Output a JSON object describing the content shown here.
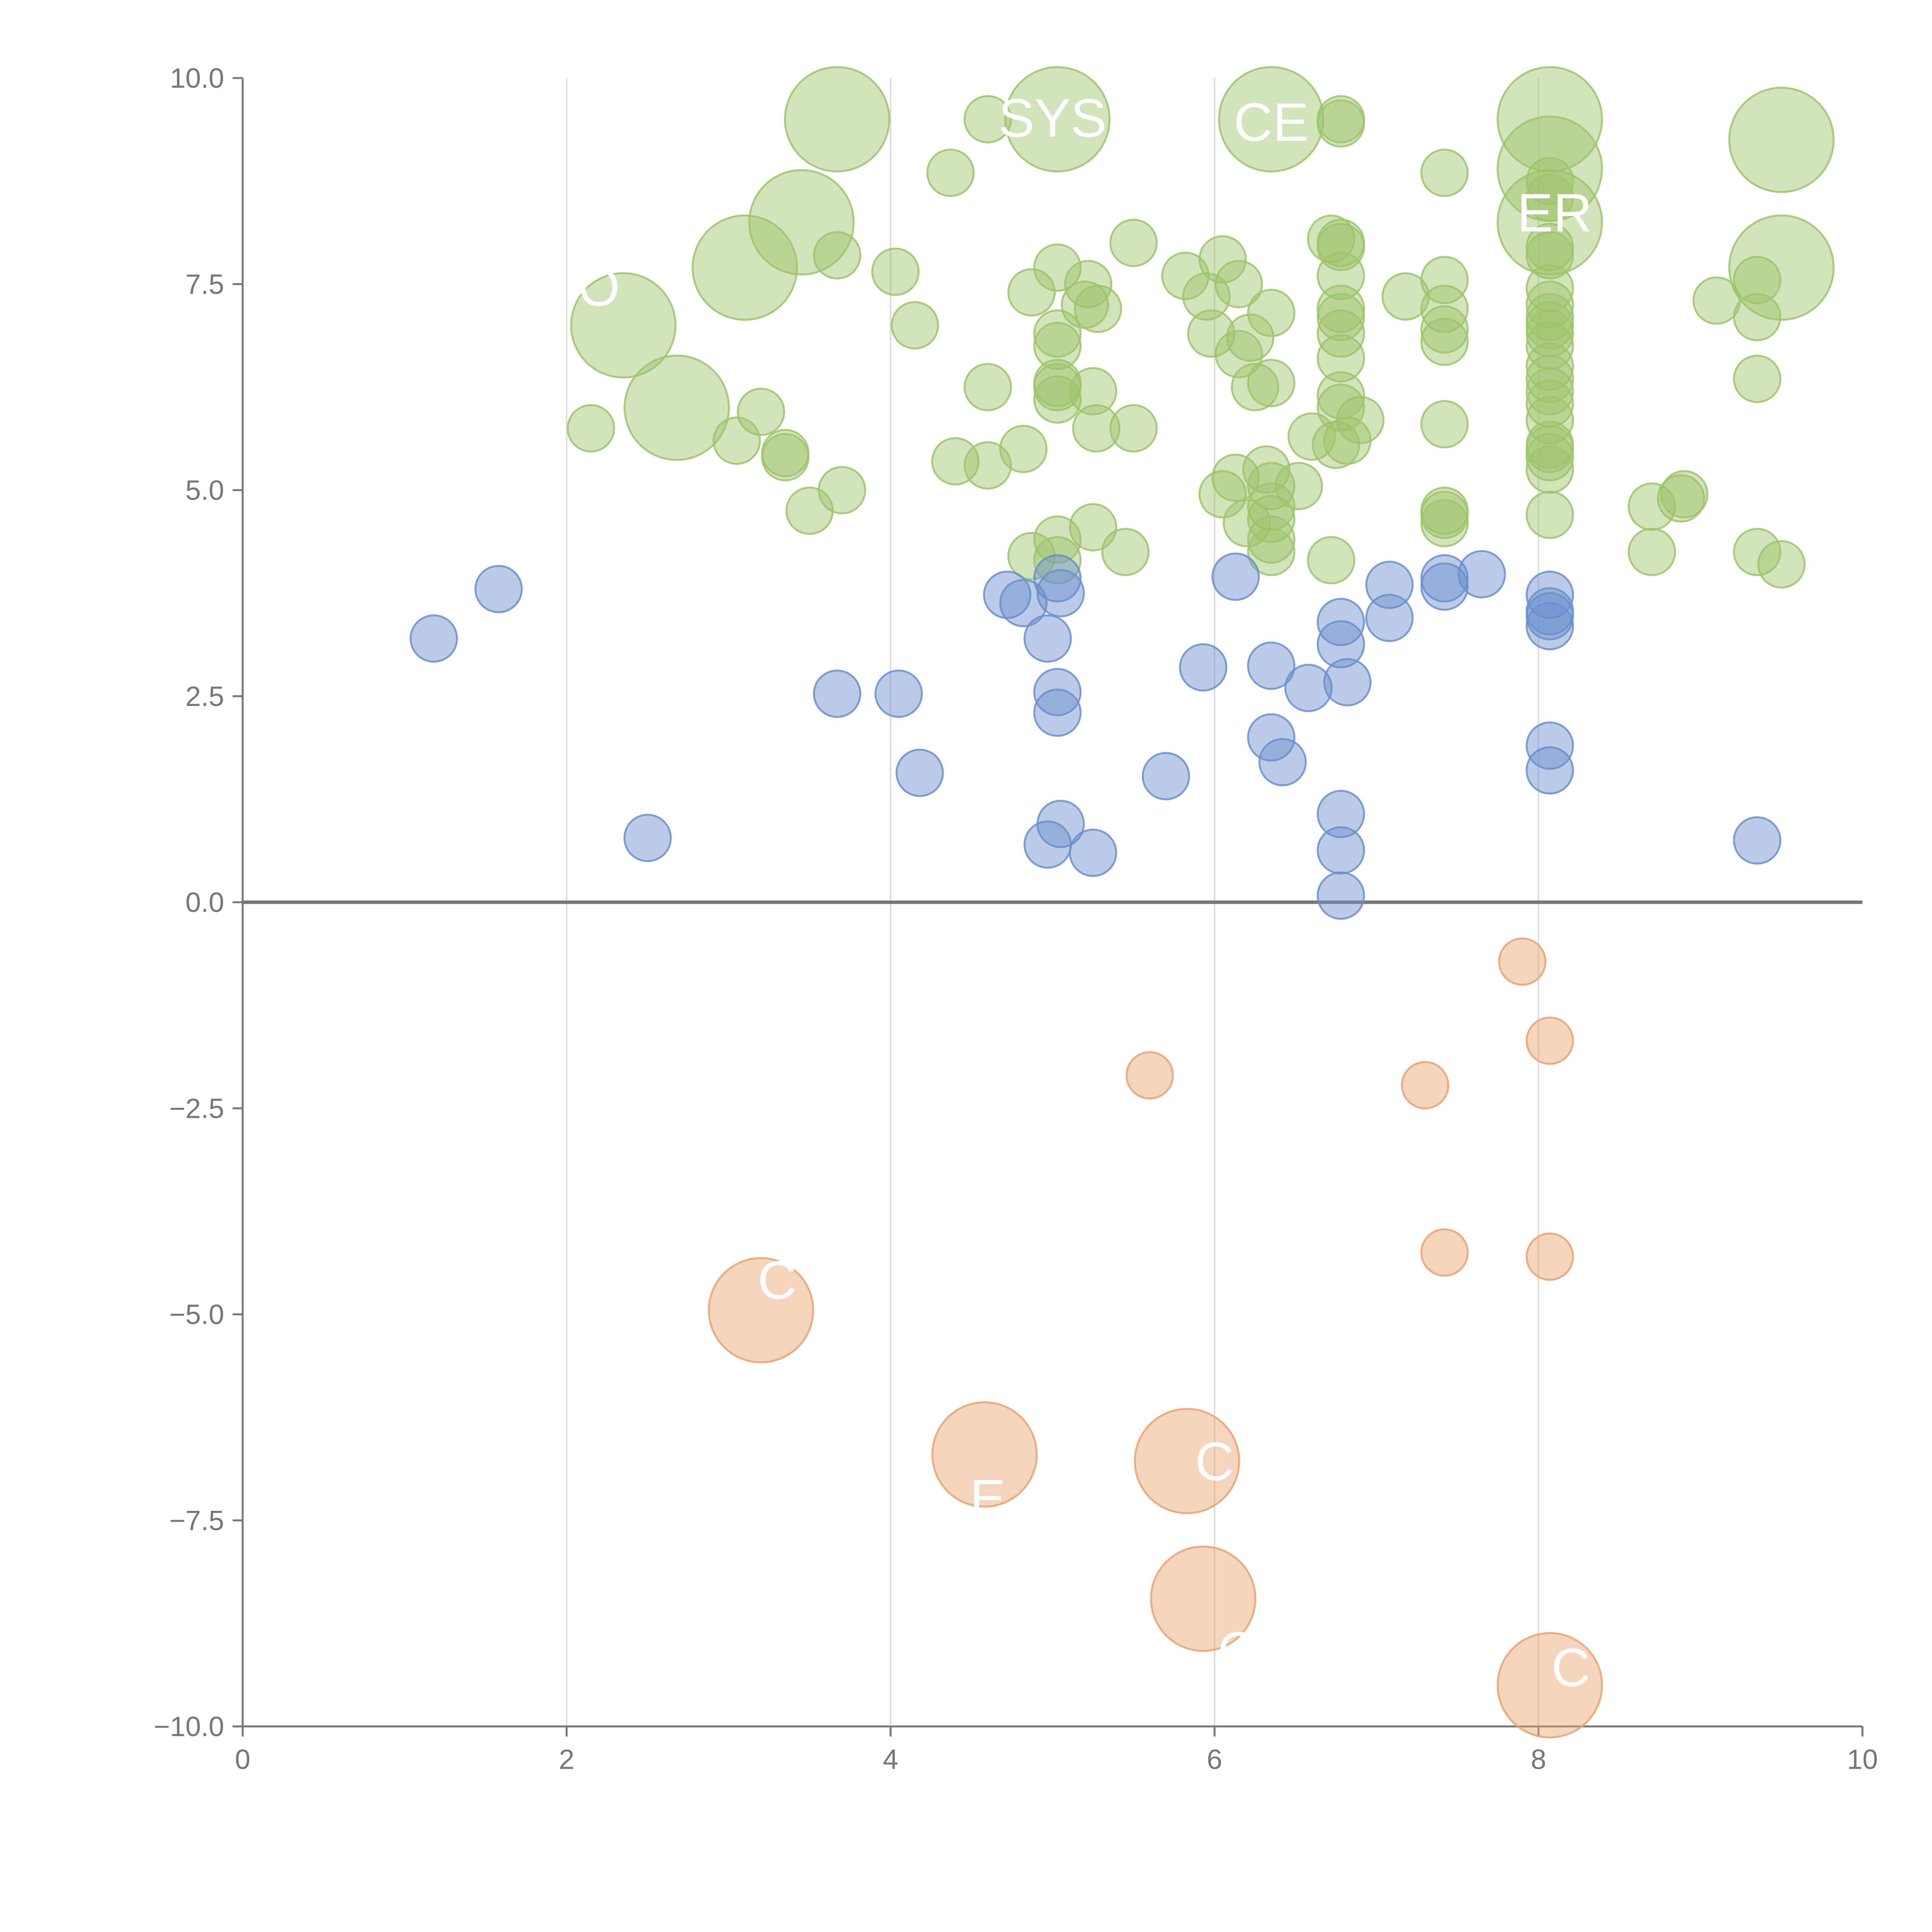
{
  "chart_data": {
    "type": "scatter",
    "title": "",
    "xlabel": "",
    "ylabel": "",
    "xlim": [
      0,
      10
    ],
    "ylim": [
      -10,
      10
    ],
    "x_ticks": [
      "0",
      "2",
      "4",
      "6",
      "8",
      "10"
    ],
    "y_ticks": [
      "10.0",
      "7.5",
      "5.0",
      "2.5",
      "0.0",
      "−2.5",
      "−5.0",
      "−7.5",
      "−10.0"
    ],
    "grid": "vertical",
    "reference_line": 0,
    "colors": {
      "green": "#9dc46b",
      "blue": "#6a8fcb",
      "orange": "#e8a26e",
      "axis": "#777777",
      "grid": "#dddddd"
    },
    "series": [
      {
        "name": "green",
        "color": "#9dc46b",
        "points": [
          [
            3.67,
            9.5,
            3
          ],
          [
            5.03,
            9.5,
            3
          ],
          [
            6.35,
            9.5,
            3
          ],
          [
            4.6,
            9.5,
            1
          ],
          [
            6.78,
            9.5,
            1
          ],
          [
            6.78,
            9.45,
            1
          ],
          [
            8.07,
            9.5,
            3
          ],
          [
            8.07,
            8.9,
            3
          ],
          [
            8.07,
            8.25,
            3
          ],
          [
            9.5,
            9.25,
            3
          ],
          [
            9.5,
            7.7,
            3
          ],
          [
            3.45,
            8.25,
            3
          ],
          [
            3.1,
            7.7,
            3
          ],
          [
            2.35,
            7.0,
            3
          ],
          [
            2.68,
            6.0,
            3
          ],
          [
            4.37,
            8.85,
            1
          ],
          [
            3.67,
            7.85,
            1
          ],
          [
            4.03,
            7.65,
            1
          ],
          [
            4.15,
            7.0,
            1
          ],
          [
            3.2,
            5.95,
            1
          ],
          [
            3.05,
            5.6,
            1
          ],
          [
            2.15,
            5.75,
            1
          ],
          [
            3.35,
            5.45,
            1
          ],
          [
            3.35,
            5.4,
            1
          ],
          [
            3.7,
            5.0,
            1
          ],
          [
            3.5,
            4.75,
            1
          ],
          [
            4.4,
            5.35,
            1
          ],
          [
            4.6,
            5.3,
            1
          ],
          [
            4.6,
            6.25,
            1
          ],
          [
            4.82,
            5.5,
            1
          ],
          [
            4.87,
            7.4,
            1
          ],
          [
            5.03,
            7.7,
            1
          ],
          [
            5.03,
            6.9,
            1
          ],
          [
            5.03,
            6.75,
            1
          ],
          [
            5.03,
            6.3,
            1
          ],
          [
            5.03,
            6.25,
            1
          ],
          [
            5.03,
            6.1,
            1
          ],
          [
            5.2,
            7.25,
            1
          ],
          [
            5.22,
            7.5,
            1
          ],
          [
            5.28,
            7.2,
            1
          ],
          [
            5.25,
            6.2,
            1
          ],
          [
            5.27,
            5.75,
            1
          ],
          [
            5.5,
            5.75,
            1
          ],
          [
            5.5,
            8.0,
            1
          ],
          [
            5.82,
            7.6,
            1
          ],
          [
            5.95,
            7.35,
            1
          ],
          [
            6.05,
            7.8,
            1
          ],
          [
            5.98,
            6.9,
            1
          ],
          [
            6.15,
            7.5,
            1
          ],
          [
            6.22,
            6.85,
            1
          ],
          [
            6.15,
            6.65,
            1
          ],
          [
            6.25,
            6.25,
            1
          ],
          [
            6.35,
            7.15,
            1
          ],
          [
            6.35,
            6.3,
            1
          ],
          [
            6.05,
            4.95,
            1
          ],
          [
            6.13,
            5.15,
            1
          ],
          [
            6.2,
            4.6,
            1
          ],
          [
            6.32,
            5.25,
            1
          ],
          [
            6.35,
            5.05,
            1
          ],
          [
            6.35,
            4.8,
            1
          ],
          [
            6.35,
            4.65,
            1
          ],
          [
            6.35,
            4.4,
            1
          ],
          [
            6.35,
            4.25,
            1
          ],
          [
            6.52,
            5.05,
            1
          ],
          [
            6.6,
            5.65,
            1
          ],
          [
            6.75,
            5.55,
            1
          ],
          [
            6.82,
            5.6,
            1
          ],
          [
            6.9,
            5.85,
            1
          ],
          [
            6.72,
            4.15,
            1
          ],
          [
            6.72,
            8.05,
            1
          ],
          [
            6.78,
            8.0,
            1
          ],
          [
            6.78,
            7.95,
            1
          ],
          [
            6.78,
            7.6,
            1
          ],
          [
            6.78,
            7.2,
            1
          ],
          [
            6.78,
            7.1,
            1
          ],
          [
            6.78,
            6.9,
            1
          ],
          [
            6.78,
            6.6,
            1
          ],
          [
            6.78,
            6.15,
            1
          ],
          [
            6.78,
            6.0,
            1
          ],
          [
            7.18,
            7.35,
            1
          ],
          [
            7.42,
            8.85,
            1
          ],
          [
            7.42,
            7.55,
            1
          ],
          [
            7.42,
            7.2,
            1
          ],
          [
            7.42,
            6.95,
            1
          ],
          [
            7.42,
            6.8,
            1
          ],
          [
            7.42,
            5.8,
            1
          ],
          [
            7.42,
            4.75,
            1
          ],
          [
            7.42,
            4.7,
            1
          ],
          [
            7.42,
            4.6,
            1
          ],
          [
            8.07,
            8.75,
            1
          ],
          [
            8.07,
            8.55,
            1
          ],
          [
            8.07,
            7.95,
            1
          ],
          [
            8.07,
            7.85,
            1
          ],
          [
            8.07,
            7.45,
            1
          ],
          [
            8.07,
            7.25,
            1
          ],
          [
            8.07,
            7.1,
            1
          ],
          [
            8.07,
            7.0,
            1
          ],
          [
            8.07,
            6.9,
            1
          ],
          [
            8.07,
            6.75,
            1
          ],
          [
            8.07,
            6.5,
            1
          ],
          [
            8.07,
            6.35,
            1
          ],
          [
            8.07,
            6.2,
            1
          ],
          [
            8.07,
            6.05,
            1
          ],
          [
            8.07,
            5.85,
            1
          ],
          [
            8.07,
            5.55,
            1
          ],
          [
            8.07,
            5.5,
            1
          ],
          [
            8.07,
            5.4,
            1
          ],
          [
            8.07,
            5.25,
            1
          ],
          [
            8.07,
            4.7,
            1
          ],
          [
            8.7,
            4.8,
            1
          ],
          [
            8.7,
            4.25,
            1
          ],
          [
            8.88,
            4.9,
            1
          ],
          [
            8.9,
            4.95,
            1
          ],
          [
            9.1,
            7.3,
            1
          ],
          [
            9.35,
            7.55,
            1
          ],
          [
            9.35,
            7.1,
            1
          ],
          [
            9.35,
            6.35,
            1
          ],
          [
            9.35,
            4.25,
            1
          ],
          [
            9.5,
            4.1,
            1
          ],
          [
            4.87,
            4.2,
            1
          ],
          [
            5.03,
            4.4,
            1
          ],
          [
            5.03,
            4.15,
            1
          ],
          [
            5.25,
            4.55,
            1
          ],
          [
            5.45,
            4.25,
            1
          ]
        ]
      },
      {
        "name": "blue",
        "color": "#6a8fcb",
        "points": [
          [
            1.18,
            3.2,
            1
          ],
          [
            1.58,
            3.8,
            1
          ],
          [
            2.5,
            0.78,
            1
          ],
          [
            3.67,
            2.53,
            1
          ],
          [
            4.05,
            2.53,
            1
          ],
          [
            4.18,
            1.57,
            1
          ],
          [
            4.72,
            3.73,
            1
          ],
          [
            4.82,
            3.63,
            1
          ],
          [
            4.97,
            3.2,
            1
          ],
          [
            5.03,
            3.93,
            1
          ],
          [
            5.05,
            3.75,
            1
          ],
          [
            5.03,
            2.55,
            1
          ],
          [
            5.03,
            2.3,
            1
          ],
          [
            5.05,
            0.95,
            1
          ],
          [
            4.97,
            0.7,
            1
          ],
          [
            5.25,
            0.6,
            1
          ],
          [
            5.7,
            1.53,
            1
          ],
          [
            5.93,
            2.85,
            1
          ],
          [
            6.13,
            3.95,
            1
          ],
          [
            6.35,
            2.87,
            1
          ],
          [
            6.35,
            2.0,
            1
          ],
          [
            6.42,
            1.7,
            1
          ],
          [
            6.58,
            2.6,
            1
          ],
          [
            6.78,
            3.4,
            1
          ],
          [
            6.78,
            3.13,
            1
          ],
          [
            6.82,
            2.67,
            1
          ],
          [
            6.78,
            1.07,
            1
          ],
          [
            6.78,
            0.63,
            1
          ],
          [
            6.78,
            0.08,
            1
          ],
          [
            7.08,
            3.85,
            1
          ],
          [
            7.08,
            3.45,
            1
          ],
          [
            7.42,
            3.93,
            1
          ],
          [
            7.42,
            3.83,
            1
          ],
          [
            7.65,
            3.98,
            1
          ],
          [
            8.07,
            3.73,
            1
          ],
          [
            8.07,
            3.53,
            1
          ],
          [
            8.07,
            3.47,
            1
          ],
          [
            8.07,
            3.35,
            1
          ],
          [
            8.07,
            1.9,
            1
          ],
          [
            8.07,
            1.6,
            1
          ],
          [
            9.35,
            0.75,
            1
          ]
        ]
      },
      {
        "name": "orange",
        "color": "#e8a26e",
        "points": [
          [
            7.9,
            -0.72,
            1
          ],
          [
            8.07,
            -1.68,
            1
          ],
          [
            5.6,
            -2.1,
            1
          ],
          [
            7.3,
            -2.22,
            1
          ],
          [
            7.42,
            -4.25,
            1
          ],
          [
            8.07,
            -4.3,
            1
          ],
          [
            3.2,
            -4.95,
            3
          ],
          [
            4.58,
            -6.7,
            3
          ],
          [
            5.83,
            -6.78,
            3
          ],
          [
            5.93,
            -8.45,
            3
          ],
          [
            8.07,
            -9.5,
            3
          ]
        ]
      }
    ],
    "annotations": [
      {
        "text": "SYS",
        "x": 5.0,
        "y": 9.5
      },
      {
        "text": "CE",
        "x": 6.35,
        "y": 9.45
      },
      {
        "text": "ER",
        "x": 8.1,
        "y": 8.35
      },
      {
        "text": "O",
        "x": 2.2,
        "y": 7.45
      },
      {
        "text": "E",
        "x": 4.6,
        "y": -7.25
      },
      {
        "text": "C",
        "x": 6.0,
        "y": -6.8
      },
      {
        "text": "O",
        "x": 6.15,
        "y": -9.1
      },
      {
        "text": "C",
        "x": 8.2,
        "y": -9.3
      },
      {
        "text": "C",
        "x": 3.3,
        "y": -4.6
      }
    ]
  }
}
